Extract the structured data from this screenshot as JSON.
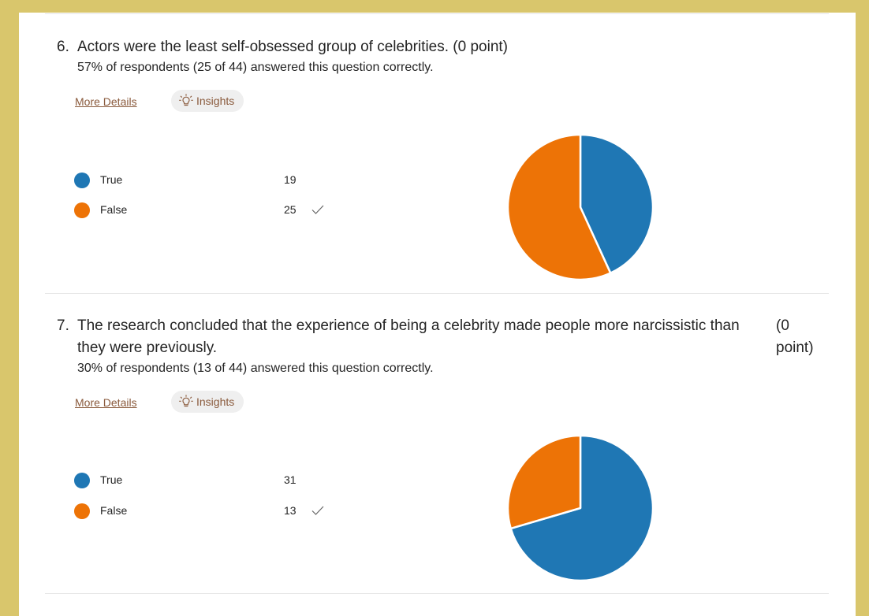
{
  "colors": {
    "true": "#1f77b4",
    "false": "#ed7306",
    "link": "#8a5a3c",
    "background": "#d9c66c"
  },
  "questions": [
    {
      "number": "6.",
      "text_lines": [
        "Actors were the least self-obsessed group of celebrities. (0 point)"
      ],
      "points": "",
      "stat": "57% of respondents (25 of 44) answered this question correctly.",
      "more_details": "More Details",
      "insights": "Insights",
      "insights_icon": "lightbulb-icon",
      "options": [
        {
          "label": "True",
          "count": "19",
          "correct": false
        },
        {
          "label": "False",
          "count": "25",
          "correct": true
        }
      ],
      "chart_data": {
        "type": "pie",
        "categories": [
          "True",
          "False"
        ],
        "values": [
          19,
          25
        ]
      }
    },
    {
      "number": "7.",
      "text_lines": [
        "The research concluded that the experience of being a celebrity made people more narcissistic than",
        "they were previously."
      ],
      "points_lines": [
        "(0",
        "point)"
      ],
      "stat": "30% of respondents (13 of 44) answered this question correctly.",
      "more_details": "More Details",
      "insights": "Insights",
      "insights_icon": "lightbulb-icon",
      "options": [
        {
          "label": "True",
          "count": "31",
          "correct": false
        },
        {
          "label": "False",
          "count": "13",
          "correct": true
        }
      ],
      "chart_data": {
        "type": "pie",
        "categories": [
          "True",
          "False"
        ],
        "values": [
          31,
          13
        ]
      }
    }
  ]
}
